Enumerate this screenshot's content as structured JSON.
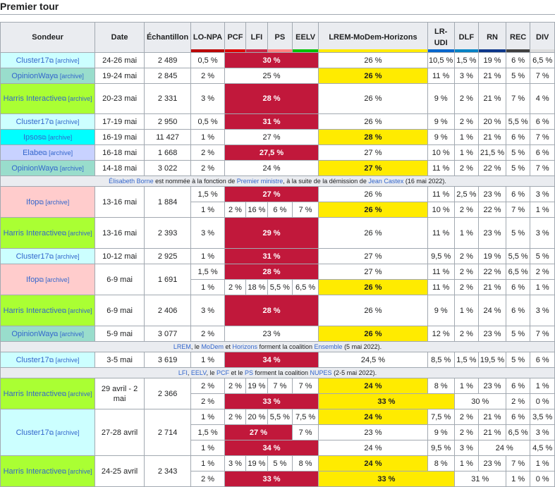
{
  "section_title": "Premier tour",
  "headers": {
    "sondeur": "Sondeur",
    "date": "Date",
    "echantillon": "Échantillon",
    "parties": [
      {
        "label": "LO-NPA",
        "color": "#bb0000"
      },
      {
        "label": "PCF",
        "color": "#dd0000"
      },
      {
        "label": "LFI",
        "color": "#cc2443"
      },
      {
        "label": "PS",
        "color": "#ff8080"
      },
      {
        "label": "EELV",
        "color": "#00c000"
      },
      {
        "label": "LREM-MoDem-Horizons",
        "color": "#ffeb00"
      },
      {
        "label": "LR-UDI",
        "color": "#0066cc"
      },
      {
        "label": "DLF",
        "color": "#0082c4"
      },
      {
        "label": "RN",
        "color": "#0d378a"
      },
      {
        "label": "REC",
        "color": "#404040"
      },
      {
        "label": "DIV",
        "color": "#dddddd"
      }
    ]
  },
  "archive_label": "[archive]",
  "ext_icon": "external-link-icon",
  "rows": [
    {
      "sondeur": "Cluster17",
      "bg": "cluster",
      "date": "24-26 mai",
      "ech": "2 489",
      "lines": [
        {
          "lo": "0,5 %",
          "left_merged": "30 %",
          "left_lead": true,
          "lrem": "26 %",
          "lrem_lead": false,
          "lr": "10,5 %",
          "dlf": "1,5 %",
          "rn": "19 %",
          "rec": "6 %",
          "div": "6,5 %"
        }
      ]
    },
    {
      "sondeur": "OpinionWay",
      "bg": "opinionway",
      "date": "19-24 mai",
      "ech": "2 845",
      "lines": [
        {
          "lo": "2 %",
          "left_merged": "25 %",
          "left_lead": false,
          "lrem": "26 %",
          "lrem_lead": true,
          "lr": "11 %",
          "dlf": "3 %",
          "rn": "21 %",
          "rec": "5 %",
          "div": "7 %"
        }
      ]
    },
    {
      "sondeur": "Harris Interactive",
      "bg": "harris",
      "date": "20-23 mai",
      "ech": "2 331",
      "lines": [
        {
          "lo": "3 %",
          "left_merged": "28 %",
          "left_lead": true,
          "lrem": "26 %",
          "lrem_lead": false,
          "lr": "9 %",
          "dlf": "2 %",
          "rn": "21 %",
          "rec": "7 %",
          "div": "4 %"
        }
      ]
    },
    {
      "sondeur": "Cluster17",
      "bg": "cluster",
      "date": "17-19 mai",
      "ech": "2 950",
      "lines": [
        {
          "lo": "0,5 %",
          "left_merged": "31 %",
          "left_lead": true,
          "lrem": "26 %",
          "lrem_lead": false,
          "lr": "9 %",
          "dlf": "2 %",
          "rn": "20 %",
          "rec": "5,5 %",
          "div": "6 %"
        }
      ]
    },
    {
      "sondeur": "Ipsos",
      "bg": "ipsos",
      "date": "16-19 mai",
      "ech": "11 427",
      "lines": [
        {
          "lo": "1 %",
          "left_merged": "27 %",
          "left_lead": false,
          "lrem": "28 %",
          "lrem_lead": true,
          "lr": "9 %",
          "dlf": "1 %",
          "rn": "21 %",
          "rec": "6 %",
          "div": "7 %"
        }
      ]
    },
    {
      "sondeur": "Elabe",
      "bg": "elabe",
      "date": "16-18 mai",
      "ech": "1 668",
      "lines": [
        {
          "lo": "2 %",
          "left_merged": "27,5 %",
          "left_lead": true,
          "lrem": "27 %",
          "lrem_lead": false,
          "lr": "10 %",
          "dlf": "1 %",
          "rn": "21,5 %",
          "rec": "5 %",
          "div": "6 %"
        }
      ]
    },
    {
      "sondeur": "OpinionWay",
      "bg": "opinionway",
      "date": "14-18 mai",
      "ech": "3 022",
      "lines": [
        {
          "lo": "2 %",
          "left_merged": "24 %",
          "left_lead": false,
          "lrem": "27 %",
          "lrem_lead": true,
          "lr": "11 %",
          "dlf": "2 %",
          "rn": "22 %",
          "rec": "5 %",
          "div": "7 %"
        }
      ]
    },
    {
      "note": [
        "Élisabeth Borne",
        " est nommée à la fonction de ",
        "Premier ministre",
        ", à la suite de la démission de ",
        "Jean Castex",
        " (16 mai 2022)."
      ]
    },
    {
      "sondeur": "Ifop",
      "bg": "ifop",
      "date": "13-16 mai",
      "ech": "1 884",
      "lines": [
        {
          "lo": "1,5 %",
          "left_merged": "27 %",
          "left_lead": true,
          "lrem": "26 %",
          "lrem_lead": false,
          "lr": "11 %",
          "dlf": "2,5 %",
          "rn": "23 %",
          "rec": "6 %",
          "div": "3 %"
        },
        {
          "lo": "1 %",
          "pcf": "2 %",
          "lfi": "16 %",
          "ps": "6 %",
          "eelv": "7 %",
          "lrem": "26 %",
          "lrem_lead": true,
          "lr": "10 %",
          "dlf": "2 %",
          "rn": "22 %",
          "rec": "7 %",
          "div": "1 %"
        }
      ]
    },
    {
      "sondeur": "Harris Interactive",
      "bg": "harris",
      "date": "13-16 mai",
      "ech": "2 393",
      "lines": [
        {
          "lo": "3 %",
          "left_merged": "29 %",
          "left_lead": true,
          "lrem": "26 %",
          "lrem_lead": false,
          "lr": "11 %",
          "dlf": "1 %",
          "rn": "23 %",
          "rec": "5 %",
          "div": "3 %"
        }
      ]
    },
    {
      "sondeur": "Cluster17",
      "bg": "cluster",
      "date": "10-12 mai",
      "ech": "2 925",
      "lines": [
        {
          "lo": "1 %",
          "left_merged": "31 %",
          "left_lead": true,
          "lrem": "27 %",
          "lrem_lead": false,
          "lr": "9,5 %",
          "dlf": "2 %",
          "rn": "19 %",
          "rec": "5,5 %",
          "div": "5 %"
        }
      ]
    },
    {
      "sondeur": "Ifop",
      "bg": "ifop",
      "date": "6-9 mai",
      "ech": "1 691",
      "lines": [
        {
          "lo": "1,5 %",
          "left_merged": "28 %",
          "left_lead": true,
          "lrem": "27 %",
          "lrem_lead": false,
          "lr": "11 %",
          "dlf": "2 %",
          "rn": "22 %",
          "rec": "6,5 %",
          "div": "2 %"
        },
        {
          "lo": "1 %",
          "pcf": "2 %",
          "lfi": "18 %",
          "ps": "5,5 %",
          "eelv": "6,5 %",
          "lrem": "26 %",
          "lrem_lead": true,
          "lr": "11 %",
          "dlf": "2 %",
          "rn": "21 %",
          "rec": "6 %",
          "div": "1 %"
        }
      ]
    },
    {
      "sondeur": "Harris Interactive",
      "bg": "harris",
      "date": "6-9 mai",
      "ech": "2 406",
      "lines": [
        {
          "lo": "3 %",
          "left_merged": "28 %",
          "left_lead": true,
          "lrem": "26 %",
          "lrem_lead": false,
          "lr": "9 %",
          "dlf": "1 %",
          "rn": "24 %",
          "rec": "6 %",
          "div": "3 %"
        }
      ]
    },
    {
      "sondeur": "OpinionWay",
      "bg": "opinionway",
      "date": "5-9 mai",
      "ech": "3 077",
      "lines": [
        {
          "lo": "2 %",
          "left_merged": "23 %",
          "left_lead": false,
          "lrem": "26 %",
          "lrem_lead": true,
          "lr": "12 %",
          "dlf": "2 %",
          "rn": "23 %",
          "rec": "5 %",
          "div": "7 %"
        }
      ]
    },
    {
      "note": [
        "LREM",
        ", le ",
        "MoDem",
        " et ",
        "Horizons",
        " forment la coalition ",
        "Ensemble",
        " (5 mai 2022)."
      ]
    },
    {
      "sondeur": "Cluster17",
      "bg": "cluster",
      "date": "3-5 mai",
      "ech": "3 619",
      "lines": [
        {
          "lo": "1 %",
          "left_merged": "34 %",
          "left_lead": true,
          "lrem": "24,5 %",
          "lrem_lead": false,
          "lr": "8,5 %",
          "dlf": "1,5 %",
          "rn": "19,5 %",
          "rec": "5 %",
          "div": "6 %"
        }
      ]
    },
    {
      "note": [
        "LFI",
        ", ",
        "EELV",
        ", le ",
        "PCF",
        " et le ",
        "PS",
        " forment la coalition ",
        "NUPES",
        " (2-5 mai 2022)."
      ]
    },
    {
      "sondeur": "Harris Interactive",
      "bg": "harris",
      "date": "29 avril - 2 mai",
      "ech": "2 366",
      "lines": [
        {
          "lo": "2 %",
          "pcf": "2 %",
          "lfi": "19 %",
          "ps": "7 %",
          "eelv": "7 %",
          "lrem": "24 %",
          "lrem_lead": true,
          "lr": "8 %",
          "dlf": "1 %",
          "rn": "23 %",
          "rec": "6 %",
          "div": "1 %"
        },
        {
          "lo": "2 %",
          "left_merged": "33 %",
          "left_lead": true,
          "lrem_lr_merged": "33 %",
          "lrem_lr_lead": true,
          "dlf_rn_merged": "30 %",
          "rec": "2 %",
          "div": "0 %"
        }
      ]
    },
    {
      "sondeur": "Cluster17",
      "bg": "cluster",
      "date": "27-28 avril",
      "ech": "2 714",
      "lines": [
        {
          "lo": "1 %",
          "pcf": "2 %",
          "lfi": "20 %",
          "ps": "5,5 %",
          "eelv": "7,5 %",
          "lrem": "24 %",
          "lrem_lead": true,
          "lr": "7,5 %",
          "dlf": "2 %",
          "rn": "21 %",
          "rec": "6 %",
          "div": "3,5 %"
        },
        {
          "lo": "1,5 %",
          "left3_merged": "27 %",
          "eelv": "7 %",
          "lrem": "23 %",
          "lrem_lead": false,
          "lr": "9 %",
          "dlf": "2 %",
          "rn": "21 %",
          "rec": "6,5 %",
          "div": "3 %"
        },
        {
          "lo": "1 %",
          "left_merged": "34 %",
          "left_lead": true,
          "lrem": "24 %",
          "lrem_lead": false,
          "lr": "9,5 %",
          "dlf": "3 %",
          "rn_rec_merged": "24 %",
          "div": "4,5 %"
        }
      ]
    },
    {
      "sondeur": "Harris Interactive",
      "bg": "harris",
      "date": "24-25 avril",
      "ech": "2 343",
      "lines": [
        {
          "lo": "1 %",
          "pcf": "3 %",
          "lfi": "19 %",
          "ps": "5 %",
          "eelv": "8 %",
          "lrem": "24 %",
          "lrem_lead": true,
          "lr": "8 %",
          "dlf": "1 %",
          "rn": "23 %",
          "rec": "7 %",
          "div": "1 %"
        },
        {
          "lo": "2 %",
          "left_merged": "33 %",
          "left_lead": true,
          "lrem_lr_merged": "33 %",
          "lrem_lr_lead": true,
          "dlf_rn_merged": "31 %",
          "rec": "1 %",
          "div": "0 %"
        }
      ]
    }
  ]
}
